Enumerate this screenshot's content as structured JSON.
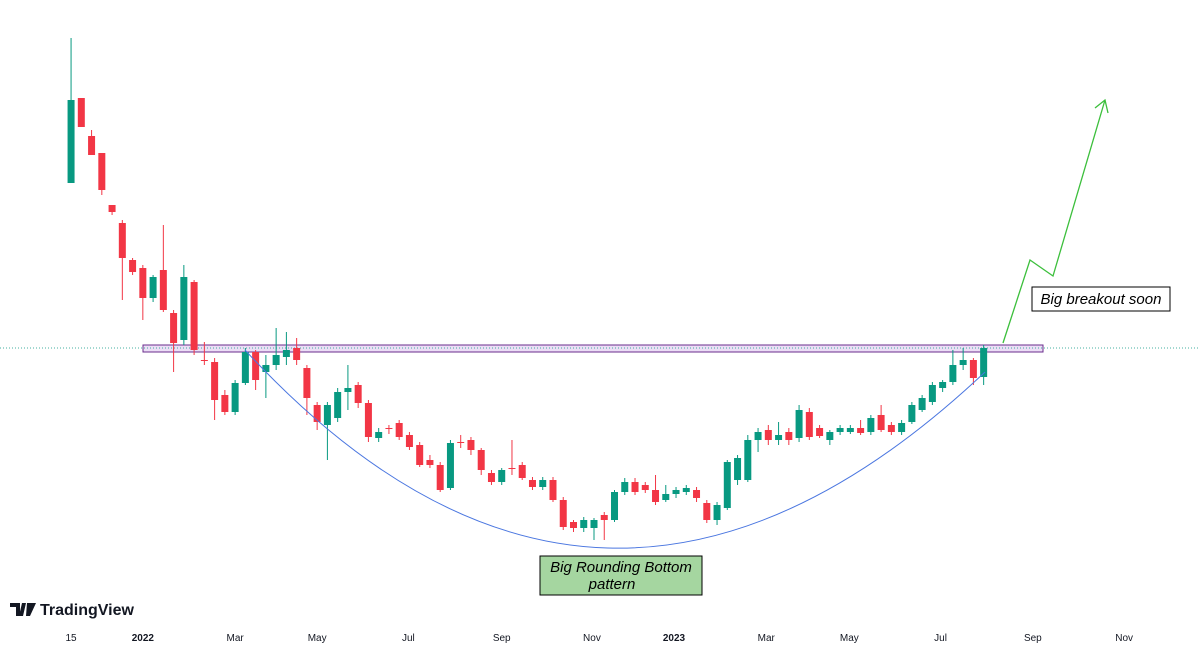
{
  "chart_data": {
    "type": "candlestick",
    "brand": "TradingView",
    "annotations": {
      "breakout": "Big breakout soon",
      "pattern": [
        "Big Rounding Bottom",
        "pattern"
      ]
    },
    "up_color": "#089981",
    "down_color": "#f23645",
    "xlim": [
      -6.93,
      110.1
    ],
    "ylim": [
      0,
      620
    ],
    "xticks": [
      {
        "value": 0,
        "label": "15"
      },
      {
        "value": 7,
        "label": "2022"
      },
      {
        "value": 16,
        "label": "Mar"
      },
      {
        "value": 24,
        "label": "May"
      },
      {
        "value": 32.9,
        "label": "Jul"
      },
      {
        "value": 42,
        "label": "Sep"
      },
      {
        "value": 50.8,
        "label": "Nov"
      },
      {
        "value": 58.8,
        "label": "2023"
      },
      {
        "value": 67.8,
        "label": "Mar"
      },
      {
        "value": 75.9,
        "label": "May"
      },
      {
        "value": 84.8,
        "label": "Jul"
      },
      {
        "value": 93.8,
        "label": "Sep"
      },
      {
        "value": 102.7,
        "label": "Nov"
      }
    ],
    "last_price": 272,
    "x": [
      0,
      1,
      2,
      3,
      4,
      5,
      6,
      7,
      8,
      9,
      10,
      11,
      12,
      13,
      14,
      15,
      16,
      17,
      18,
      19,
      20,
      21,
      22,
      23,
      24,
      25,
      26,
      27,
      28,
      29,
      30,
      31,
      32,
      33,
      34,
      35,
      36,
      37,
      38,
      39,
      40,
      41,
      42,
      43,
      44,
      45,
      46,
      47,
      48,
      49,
      50,
      51,
      52,
      53,
      54,
      55,
      56,
      57,
      58,
      59,
      60,
      61,
      62,
      63,
      64,
      65,
      66,
      67,
      68,
      69,
      70,
      71,
      72,
      73,
      74,
      75,
      76,
      77,
      78,
      79,
      80,
      81,
      82,
      83,
      84,
      85,
      86,
      87,
      88,
      89
    ],
    "open": [
      437,
      522,
      484,
      467,
      415,
      397,
      360,
      352,
      322,
      350,
      307,
      280,
      338,
      260,
      258,
      225,
      208,
      237,
      268,
      248,
      255,
      263,
      272,
      252,
      215,
      195,
      202,
      228,
      235,
      217,
      182,
      192,
      197,
      185,
      175,
      160,
      155,
      132,
      178,
      180,
      170,
      147,
      138,
      152,
      155,
      140,
      133,
      140,
      120,
      98,
      92,
      92,
      105,
      100,
      128,
      138,
      135,
      130,
      120,
      126,
      128,
      130,
      117,
      100,
      112,
      140,
      140,
      180,
      190,
      180,
      188,
      182,
      208,
      192,
      180,
      188,
      188,
      192,
      188,
      205,
      195,
      188,
      198,
      210,
      218,
      232,
      238,
      255,
      260,
      243
    ],
    "high": [
      582,
      522,
      490,
      467,
      415,
      400,
      362,
      355,
      345,
      395,
      310,
      355,
      340,
      278,
      262,
      230,
      240,
      272,
      270,
      265,
      292,
      288,
      282,
      255,
      218,
      218,
      232,
      255,
      238,
      220,
      192,
      195,
      200,
      188,
      178,
      165,
      158,
      180,
      185,
      183,
      172,
      150,
      152,
      180,
      158,
      143,
      143,
      143,
      123,
      100,
      103,
      102,
      108,
      130,
      142,
      142,
      138,
      145,
      135,
      133,
      135,
      133,
      120,
      118,
      160,
      165,
      185,
      192,
      195,
      198,
      192,
      215,
      212,
      195,
      190,
      195,
      195,
      200,
      205,
      215,
      198,
      200,
      218,
      225,
      238,
      240,
      270,
      272,
      262,
      275
    ],
    "low": [
      437,
      493,
      465,
      425,
      405,
      320,
      345,
      300,
      318,
      308,
      248,
      275,
      265,
      255,
      200,
      205,
      205,
      235,
      230,
      222,
      250,
      255,
      255,
      205,
      190,
      160,
      198,
      210,
      212,
      178,
      178,
      186,
      180,
      170,
      153,
      152,
      128,
      130,
      172,
      165,
      145,
      135,
      135,
      145,
      140,
      130,
      130,
      118,
      90,
      88,
      88,
      80,
      80,
      98,
      125,
      125,
      127,
      115,
      118,
      122,
      125,
      118,
      97,
      95,
      110,
      135,
      138,
      168,
      175,
      175,
      175,
      178,
      180,
      182,
      175,
      185,
      186,
      185,
      185,
      188,
      185,
      185,
      196,
      208,
      215,
      228,
      235,
      250,
      235,
      235
    ],
    "close": [
      520,
      493,
      465,
      430,
      408,
      362,
      348,
      322,
      343,
      310,
      277,
      343,
      270,
      259,
      220,
      208,
      237,
      268,
      240,
      255,
      265,
      270,
      260,
      222,
      198,
      215,
      228,
      232,
      217,
      183,
      188,
      191,
      183,
      173,
      155,
      155,
      130,
      177,
      177,
      170,
      150,
      138,
      150,
      151,
      142,
      133,
      140,
      120,
      93,
      92,
      100,
      100,
      100,
      128,
      138,
      128,
      130,
      118,
      126,
      130,
      132,
      122,
      100,
      115,
      158,
      162,
      180,
      188,
      180,
      185,
      180,
      210,
      183,
      184,
      188,
      192,
      192,
      187,
      202,
      190,
      188,
      197,
      215,
      222,
      235,
      238,
      255,
      260,
      242,
      272
    ]
  }
}
